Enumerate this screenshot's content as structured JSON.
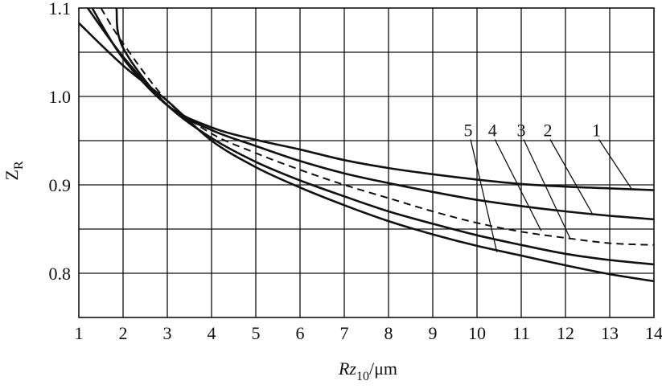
{
  "chart_data": {
    "type": "line",
    "xlabel": "Rz10/μm",
    "xlabel_main": "Rz",
    "xlabel_sub": "10",
    "xlabel_unit": "/μm",
    "ylabel": "ZR",
    "ylabel_main": "Z",
    "ylabel_sub": "R",
    "xlim": [
      1,
      14
    ],
    "ylim": [
      0.75,
      1.1
    ],
    "x_ticks": [
      "1",
      "2",
      "3",
      "4",
      "5",
      "6",
      "7",
      "8",
      "9",
      "10",
      "11",
      "12",
      "13",
      "14"
    ],
    "y_ticks": [
      {
        "value": 0.8,
        "label": "0.8"
      },
      {
        "value": 0.9,
        "label": "0.9"
      },
      {
        "value": 1.0,
        "label": "1.0"
      },
      {
        "value": 1.1,
        "label": "1.1"
      }
    ],
    "grid": true,
    "grid_x_step": 1,
    "grid_y_step": 0.05,
    "series": [
      {
        "name": "1",
        "style": "solid",
        "x": [
          1.3,
          2,
          3,
          4,
          5,
          6,
          7,
          8,
          9,
          10,
          11,
          12,
          13,
          14
        ],
        "y": [
          1.1,
          1.043,
          0.99,
          0.965,
          0.951,
          0.94,
          0.928,
          0.919,
          0.912,
          0.906,
          0.901,
          0.898,
          0.896,
          0.894
        ]
      },
      {
        "name": "2",
        "style": "solid",
        "x": [
          1.85,
          2,
          3,
          4,
          5,
          6,
          7,
          8,
          9,
          10,
          11,
          12,
          13,
          14
        ],
        "y": [
          1.1,
          1.055,
          0.99,
          0.962,
          0.944,
          0.927,
          0.913,
          0.902,
          0.892,
          0.883,
          0.876,
          0.87,
          0.865,
          0.861
        ]
      },
      {
        "name": "3",
        "style": "dashed",
        "x": [
          1.5,
          2,
          3,
          4,
          5,
          6,
          7,
          8,
          9,
          10,
          11,
          12,
          13,
          14
        ],
        "y": [
          1.1,
          1.06,
          0.995,
          0.958,
          0.936,
          0.917,
          0.9,
          0.885,
          0.87,
          0.857,
          0.847,
          0.84,
          0.834,
          0.832
        ]
      },
      {
        "name": "4",
        "style": "solid",
        "x": [
          1.2,
          2,
          3,
          4,
          5,
          6,
          7,
          8,
          9,
          10,
          11,
          12,
          13,
          14
        ],
        "y": [
          1.1,
          1.045,
          0.99,
          0.953,
          0.926,
          0.905,
          0.887,
          0.87,
          0.856,
          0.843,
          0.832,
          0.822,
          0.815,
          0.81
        ]
      },
      {
        "name": "5",
        "style": "solid",
        "x": [
          1,
          2,
          3,
          4,
          5,
          6,
          7,
          8,
          9,
          10,
          11,
          12,
          13,
          14
        ],
        "y": [
          1.083,
          1.035,
          0.995,
          0.95,
          0.92,
          0.897,
          0.877,
          0.859,
          0.844,
          0.831,
          0.82,
          0.809,
          0.799,
          0.791
        ]
      }
    ],
    "curve_labels": [
      {
        "series": "1",
        "text": "1",
        "label_at": {
          "x": 12.7,
          "y": 0.955
        },
        "points_to": {
          "x": 13.5,
          "y": 0.895
        }
      },
      {
        "series": "2",
        "text": "2",
        "label_at": {
          "x": 11.6,
          "y": 0.955
        },
        "points_to": {
          "x": 12.6,
          "y": 0.868
        }
      },
      {
        "series": "3",
        "text": "3",
        "label_at": {
          "x": 11.0,
          "y": 0.955
        },
        "points_to": {
          "x": 12.1,
          "y": 0.84
        }
      },
      {
        "series": "4",
        "text": "4",
        "label_at": {
          "x": 10.35,
          "y": 0.955
        },
        "points_to": {
          "x": 11.45,
          "y": 0.848
        }
      },
      {
        "series": "5",
        "text": "5",
        "label_at": {
          "x": 9.8,
          "y": 0.955
        },
        "points_to": {
          "x": 10.45,
          "y": 0.824
        }
      }
    ]
  }
}
